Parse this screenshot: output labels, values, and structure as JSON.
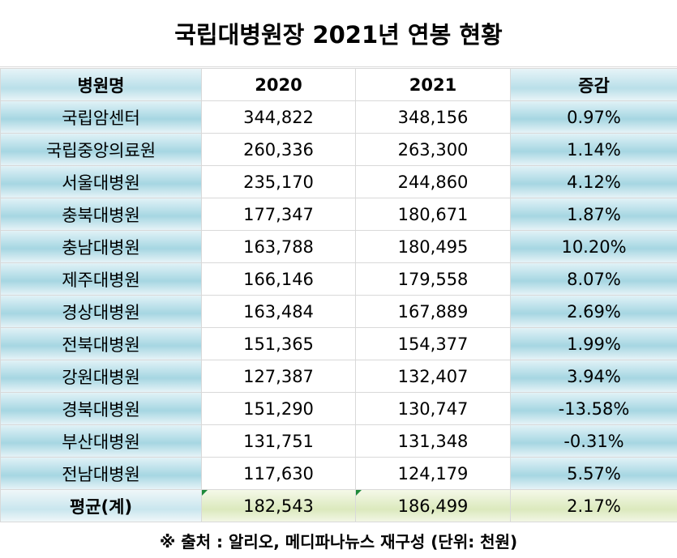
{
  "title": "국립대병원장 2021년 연봉 현황",
  "headers": [
    "병원명",
    "2020",
    "2021",
    "증감"
  ],
  "rows": [
    {
      "name": "국립암센터",
      "y2020": "344,822",
      "y2021": "348,156",
      "change": "0.97%"
    },
    {
      "name": "국립중앙의료원",
      "y2020": "260,336",
      "y2021": "263,300",
      "change": "1.14%"
    },
    {
      "name": "서울대병원",
      "y2020": "235,170",
      "y2021": "244,860",
      "change": "4.12%"
    },
    {
      "name": "충북대병원",
      "y2020": "177,347",
      "y2021": "180,671",
      "change": "1.87%"
    },
    {
      "name": "충남대병원",
      "y2020": "163,788",
      "y2021": "180,495",
      "change": "10.20%"
    },
    {
      "name": "제주대병원",
      "y2020": "166,146",
      "y2021": "179,558",
      "change": "8.07%"
    },
    {
      "name": "경상대병원",
      "y2020": "163,484",
      "y2021": "167,889",
      "change": "2.69%"
    },
    {
      "name": "전북대병원",
      "y2020": "151,365",
      "y2021": "154,377",
      "change": "1.99%"
    },
    {
      "name": "강원대병원",
      "y2020": "127,387",
      "y2021": "132,407",
      "change": "3.94%"
    },
    {
      "name": "경북대병원",
      "y2020": "151,290",
      "y2021": "130,747",
      "change": "-13.58%"
    },
    {
      "name": "부산대병원",
      "y2020": "131,751",
      "y2021": "131,348",
      "change": "-0.31%"
    },
    {
      "name": "전남대병원",
      "y2020": "117,630",
      "y2021": "124,179",
      "change": "5.57%"
    }
  ],
  "average": {
    "label": "평균(계)",
    "y2020": "182,543",
    "y2021": "186,499",
    "change": "2.17%"
  },
  "footer": "※ 출처 : 알리오, 메디파나뉴스 재구성 (단위: 천원)",
  "colors": {
    "negative": "#e0201a",
    "header_fill": "#a6d6e2",
    "average_fill": "#dbe9bd"
  }
}
